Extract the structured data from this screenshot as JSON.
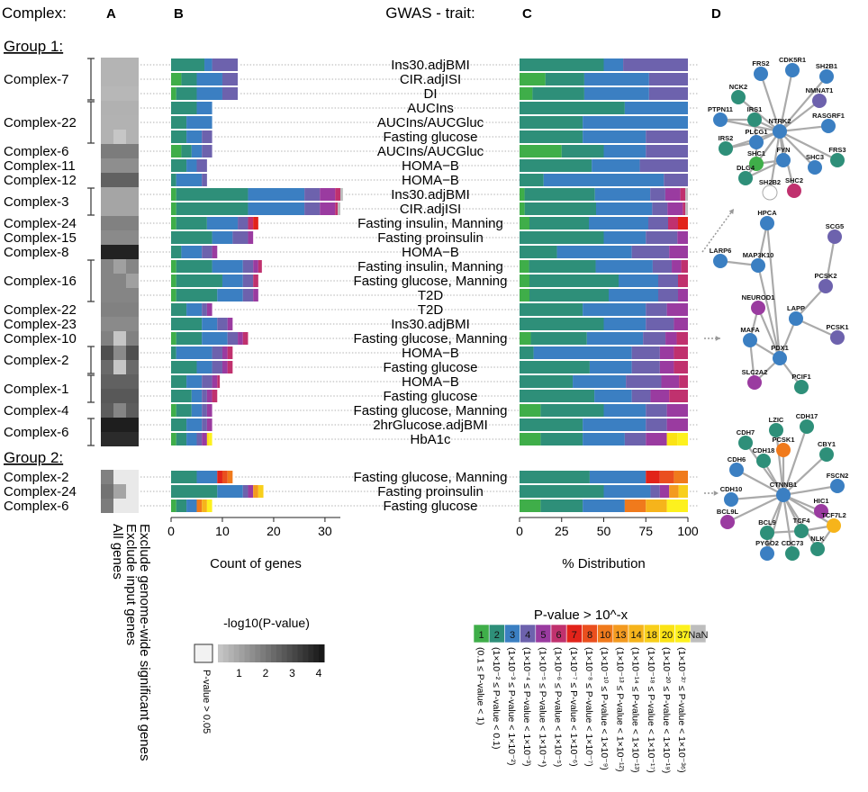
{
  "header": {
    "complex_label": "Complex:",
    "panel_a": "A",
    "panel_b": "B",
    "panel_c": "C",
    "panel_d": "D",
    "gwas_label": "GWAS - trait:"
  },
  "groups": [
    {
      "title": "Group 1:",
      "type": "header"
    },
    {
      "title": "Group 2:",
      "type": "header"
    }
  ],
  "palette": {
    "1": "#3fae49",
    "2": "#2e8f79",
    "3": "#3b7fc2",
    "4": "#6d62ad",
    "5": "#9a3ba0",
    "6": "#c0316e",
    "7": "#e2231a",
    "8": "#ea4f1e",
    "10": "#f07a1c",
    "13": "#f39a1f",
    "14": "#f6b41b",
    "18": "#f8cf1b",
    "20": "#fbe315",
    "37": "#fdf11e",
    "NaN": "#bdbdbd"
  },
  "chart_data": {
    "type": "bar",
    "panel_b": {
      "xlabel": "Count of genes",
      "xlim": [
        0,
        33
      ],
      "ticks": [
        0,
        10,
        20,
        30
      ]
    },
    "panel_c": {
      "xlabel": "% Distribution",
      "xlim": [
        0,
        100
      ],
      "ticks": [
        0,
        25,
        50,
        75,
        100
      ]
    },
    "rows": [
      {
        "group": 1,
        "complex": "Complex-7",
        "trait": "Ins30.adjBMI",
        "heat": [
          0.55,
          0.55,
          0.55
        ],
        "segs": [
          [
            2,
            6.5
          ],
          [
            3,
            1.5
          ],
          [
            4,
            5
          ]
        ]
      },
      {
        "group": 1,
        "complex": "",
        "trait": "CIR.adjISI",
        "heat": [
          0.55,
          0.55,
          0.55
        ],
        "segs": [
          [
            1,
            2
          ],
          [
            2,
            3
          ],
          [
            3,
            5
          ],
          [
            4,
            3
          ]
        ]
      },
      {
        "group": 1,
        "complex": "",
        "trait": "DI",
        "heat": [
          0.5,
          0.5,
          0.5
        ],
        "segs": [
          [
            1,
            1
          ],
          [
            2,
            4
          ],
          [
            3,
            5
          ],
          [
            4,
            3
          ]
        ]
      },
      {
        "group": 1,
        "complex": "Complex-22",
        "trait": "AUCIns",
        "heat": [
          0.62,
          0.62,
          0.62
        ],
        "segs": [
          [
            2,
            5
          ],
          [
            3,
            3
          ]
        ]
      },
      {
        "group": 1,
        "complex": "",
        "trait": "AUCIns/AUCGluc",
        "heat": [
          0.6,
          0.6,
          0.6
        ],
        "segs": [
          [
            2,
            3
          ],
          [
            3,
            5
          ]
        ]
      },
      {
        "group": 1,
        "complex": "",
        "trait": "Fasting glucose",
        "heat": [
          0.6,
          0.15,
          0.6
        ],
        "segs": [
          [
            2,
            3
          ],
          [
            3,
            3
          ],
          [
            4,
            2
          ]
        ]
      },
      {
        "group": 1,
        "complex": "Complex-6",
        "trait": "AUCIns/AUCGluc",
        "heat": [
          1.8,
          1.8,
          1.8
        ],
        "segs": [
          [
            1,
            2
          ],
          [
            2,
            2
          ],
          [
            3,
            2
          ],
          [
            4,
            2
          ]
        ]
      },
      {
        "group": 1,
        "complex": "Complex-11",
        "trait": "HOMA−B",
        "heat": [
          1.4,
          1.4,
          1.4
        ],
        "segs": [
          [
            2,
            3
          ],
          [
            3,
            2
          ],
          [
            4,
            2
          ]
        ]
      },
      {
        "group": 1,
        "complex": "Complex-12",
        "trait": "HOMA−B",
        "heat": [
          2.4,
          2.4,
          2.4
        ],
        "segs": [
          [
            2,
            1
          ],
          [
            3,
            5
          ],
          [
            4,
            1
          ]
        ]
      },
      {
        "group": 1,
        "complex": "Complex-3",
        "trait": "Ins30.adjBMI",
        "heat": [
          0.9,
          0.9,
          0.9
        ],
        "segs": [
          [
            1,
            1
          ],
          [
            2,
            14
          ],
          [
            3,
            11
          ],
          [
            4,
            3
          ],
          [
            5,
            3
          ],
          [
            6,
            1
          ],
          [
            "NaN",
            0.5
          ]
        ]
      },
      {
        "group": 1,
        "complex": "",
        "trait": "CIR.adjISI",
        "heat": [
          0.9,
          0.9,
          0.9
        ],
        "segs": [
          [
            1,
            1
          ],
          [
            2,
            14
          ],
          [
            3,
            11
          ],
          [
            4,
            3
          ],
          [
            5,
            3
          ],
          [
            6,
            0.5
          ],
          [
            "NaN",
            0.5
          ]
        ]
      },
      {
        "group": 1,
        "complex": "Complex-24",
        "trait": "Fasting insulin, Manning",
        "heat": [
          1.7,
          1.7,
          1.7
        ],
        "segs": [
          [
            1,
            1
          ],
          [
            2,
            6
          ],
          [
            3,
            6
          ],
          [
            4,
            2
          ],
          [
            6,
            1
          ],
          [
            7,
            1
          ]
        ]
      },
      {
        "group": 1,
        "complex": "Complex-15",
        "trait": "Fasting proinsulin",
        "heat": [
          1.5,
          1.5,
          1.5
        ],
        "segs": [
          [
            2,
            8
          ],
          [
            3,
            4
          ],
          [
            4,
            3
          ],
          [
            5,
            1
          ]
        ]
      },
      {
        "group": 1,
        "complex": "Complex-8",
        "trait": "HOMA−B",
        "heat": [
          3.8,
          3.8,
          3.8
        ],
        "segs": [
          [
            2,
            2
          ],
          [
            3,
            4
          ],
          [
            4,
            2
          ],
          [
            5,
            1
          ]
        ]
      },
      {
        "group": 1,
        "complex": "Complex-16",
        "trait": "Fasting insulin, Manning",
        "heat": [
          1.6,
          1.0,
          1.6
        ],
        "segs": [
          [
            1,
            1
          ],
          [
            2,
            7
          ],
          [
            3,
            6
          ],
          [
            4,
            2
          ],
          [
            5,
            1
          ],
          [
            6,
            0.7
          ]
        ]
      },
      {
        "group": 1,
        "complex": "",
        "trait": "Fasting glucose, Manning",
        "heat": [
          1.6,
          1.6,
          1.0
        ],
        "segs": [
          [
            1,
            1
          ],
          [
            2,
            9
          ],
          [
            3,
            4
          ],
          [
            4,
            2
          ],
          [
            6,
            1
          ]
        ]
      },
      {
        "group": 1,
        "complex": "",
        "trait": "T2D",
        "heat": [
          1.6,
          1.6,
          1.6
        ],
        "segs": [
          [
            1,
            1
          ],
          [
            2,
            8
          ],
          [
            3,
            5
          ],
          [
            4,
            2
          ],
          [
            5,
            1
          ]
        ]
      },
      {
        "group": 1,
        "complex": "Complex-22",
        "trait": "T2D",
        "heat": [
          1.7,
          1.7,
          1.7
        ],
        "segs": [
          [
            2,
            3
          ],
          [
            3,
            3
          ],
          [
            4,
            1
          ],
          [
            5,
            1
          ]
        ]
      },
      {
        "group": 1,
        "complex": "Complex-23",
        "trait": "Ins30.adjBMI",
        "heat": [
          1.5,
          1.5,
          1.5
        ],
        "segs": [
          [
            2,
            6
          ],
          [
            3,
            3
          ],
          [
            4,
            2
          ],
          [
            5,
            1
          ]
        ]
      },
      {
        "group": 1,
        "complex": "Complex-10",
        "trait": "Fasting glucose, Manning",
        "heat": [
          1.7,
          0.15,
          1.7
        ],
        "segs": [
          [
            1,
            1
          ],
          [
            2,
            5
          ],
          [
            3,
            5
          ],
          [
            4,
            2
          ],
          [
            5,
            1
          ],
          [
            6,
            1
          ]
        ]
      },
      {
        "group": 1,
        "complex": "Complex-2",
        "trait": "HOMA−B",
        "heat": [
          2.8,
          1.5,
          2.8
        ],
        "segs": [
          [
            2,
            1
          ],
          [
            3,
            7
          ],
          [
            4,
            2
          ],
          [
            5,
            1
          ],
          [
            6,
            1
          ]
        ]
      },
      {
        "group": 1,
        "complex": "",
        "trait": "Fasting glucose",
        "heat": [
          2.2,
          0.15,
          2.2
        ],
        "segs": [
          [
            2,
            5
          ],
          [
            3,
            3
          ],
          [
            4,
            2
          ],
          [
            5,
            1
          ],
          [
            6,
            1
          ]
        ]
      },
      {
        "group": 1,
        "complex": "Complex-1",
        "trait": "HOMA−B",
        "heat": [
          2.4,
          2.4,
          2.4
        ],
        "segs": [
          [
            2,
            3
          ],
          [
            3,
            3
          ],
          [
            4,
            2
          ],
          [
            5,
            1
          ],
          [
            6,
            0.5
          ]
        ]
      },
      {
        "group": 1,
        "complex": "",
        "trait": "Fasting glucose",
        "heat": [
          2.6,
          2.6,
          2.6
        ],
        "segs": [
          [
            2,
            4
          ],
          [
            3,
            2
          ],
          [
            4,
            1
          ],
          [
            5,
            1
          ],
          [
            6,
            1
          ]
        ]
      },
      {
        "group": 1,
        "complex": "Complex-4",
        "trait": "Fasting glucose, Manning",
        "heat": [
          2.5,
          1.6,
          2.5
        ],
        "segs": [
          [
            1,
            1
          ],
          [
            2,
            3
          ],
          [
            3,
            2
          ],
          [
            4,
            1
          ],
          [
            5,
            1
          ]
        ]
      },
      {
        "group": 1,
        "complex": "Complex-6",
        "trait": "2hrGlucose.adjBMI",
        "heat": [
          3.9,
          3.9,
          3.9
        ],
        "segs": [
          [
            2,
            3
          ],
          [
            3,
            3
          ],
          [
            4,
            1
          ],
          [
            5,
            1
          ]
        ]
      },
      {
        "group": 1,
        "complex": "",
        "trait": "HbA1c",
        "heat": [
          3.6,
          3.6,
          3.6
        ],
        "segs": [
          [
            1,
            1
          ],
          [
            2,
            2
          ],
          [
            3,
            2
          ],
          [
            4,
            1
          ],
          [
            5,
            1
          ],
          [
            20,
            0.5
          ],
          [
            37,
            0.5
          ]
        ]
      },
      {
        "group": 2,
        "complex": "Complex-2",
        "trait": "Fasting glucose, Manning",
        "heat": [
          1.7,
          0.0,
          0.0
        ],
        "segs": [
          [
            2,
            5
          ],
          [
            3,
            4
          ],
          [
            7,
            1
          ],
          [
            8,
            1
          ],
          [
            10,
            1
          ]
        ]
      },
      {
        "group": 2,
        "complex": "Complex-24",
        "trait": "Fasting proinsulin",
        "heat": [
          2.0,
          0.9,
          0.0
        ],
        "segs": [
          [
            2,
            9
          ],
          [
            3,
            5
          ],
          [
            4,
            1
          ],
          [
            5,
            1
          ],
          [
            13,
            1
          ],
          [
            18,
            1
          ]
        ]
      },
      {
        "group": 2,
        "complex": "Complex-6",
        "trait": "Fasting glucose",
        "heat": [
          1.8,
          0.0,
          0.0
        ],
        "segs": [
          [
            1,
            1
          ],
          [
            2,
            2
          ],
          [
            3,
            2
          ],
          [
            10,
            1
          ],
          [
            14,
            1
          ],
          [
            37,
            1
          ]
        ]
      }
    ]
  },
  "heat_columns": [
    "All genes",
    "Exclude input genes",
    "Exclude genome-wide significant genes"
  ],
  "heat_legend": {
    "title": "-log10(P-value)",
    "nonsig": "P-value > 0.05",
    "ticks": [
      "1",
      "2",
      "3",
      "4"
    ]
  },
  "pval_legend": {
    "title": "P-value > 10^-x",
    "keys": [
      "1",
      "2",
      "3",
      "4",
      "5",
      "6",
      "7",
      "8",
      "10",
      "13",
      "14",
      "18",
      "20",
      "37",
      "NaN"
    ],
    "labels": [
      "(0.1 ≤ P-value < 1)",
      "(1×10⁻² ≤ P-value < 0.1)",
      "(1×10⁻³ ≤ P-value < 1×10⁻²)",
      "(1×10⁻⁴ ≤ P-value < 1×10⁻³)",
      "(1×10⁻⁵ ≤ P-value < 1×10⁻⁴)",
      "(1×10⁻⁶ ≤ P-value < 1×10⁻⁵)",
      "(1×10⁻⁷ ≤ P-value < 1×10⁻⁶)",
      "(1×10⁻⁸ ≤ P-value < 1×10⁻⁷)",
      "(1×10⁻¹⁰ ≤ P-value < 1×10⁻⁹)",
      "(1×10⁻¹³ ≤ P-value < 1×10⁻¹²)",
      "(1×10⁻¹⁴ ≤ P-value < 1×10⁻¹³)",
      "(1×10⁻¹⁸ ≤ P-value < 1×10⁻¹⁷)",
      "(1×10⁻²⁰ ≤ P-value < 1×10⁻¹⁹)",
      "(1×10⁻³⁷ ≤ P-value < 1×10⁻³⁶)",
      ""
    ]
  },
  "networks": [
    {
      "nodes": [
        {
          "id": "FRS2",
          "c": 3
        },
        {
          "id": "CDK5R1",
          "c": 3
        },
        {
          "id": "SH2B1",
          "c": 3
        },
        {
          "id": "NCK2",
          "c": 2
        },
        {
          "id": "NMNAT1",
          "c": 4
        },
        {
          "id": "PTPN11",
          "c": 3
        },
        {
          "id": "IRS1",
          "c": 2
        },
        {
          "id": "NTRK2",
          "c": 3
        },
        {
          "id": "RASGRF1",
          "c": 3
        },
        {
          "id": "IRS2",
          "c": 2
        },
        {
          "id": "PLCG1",
          "c": 3
        },
        {
          "id": "FRS3",
          "c": 2
        },
        {
          "id": "SHC1",
          "c": 1
        },
        {
          "id": "FYN",
          "c": 3
        },
        {
          "id": "SHC3",
          "c": 3
        },
        {
          "id": "DLG4",
          "c": 2
        },
        {
          "id": "SH2B2",
          "c": "empty"
        },
        {
          "id": "SHC2",
          "c": 6
        }
      ],
      "hub": "NTRK2"
    },
    {
      "nodes": [
        {
          "id": "HPCA",
          "c": 3
        },
        {
          "id": "SCG5",
          "c": 4
        },
        {
          "id": "LARP6",
          "c": 3
        },
        {
          "id": "MAP3K10",
          "c": 3
        },
        {
          "id": "PCSK2",
          "c": 4
        },
        {
          "id": "NEUROD1",
          "c": 5
        },
        {
          "id": "LAPP",
          "c": 3
        },
        {
          "id": "PCSK1",
          "c": 4
        },
        {
          "id": "MAFA",
          "c": 3
        },
        {
          "id": "PDX1",
          "c": 3
        },
        {
          "id": "SLC2A2",
          "c": 5
        },
        {
          "id": "PCIF1",
          "c": 2
        }
      ],
      "hub": "PDX1"
    },
    {
      "nodes": [
        {
          "id": "LZIC",
          "c": 2
        },
        {
          "id": "CDH17",
          "c": 2
        },
        {
          "id": "CDH7",
          "c": 2
        },
        {
          "id": "PCSK1",
          "c": 10
        },
        {
          "id": "CBY1",
          "c": 2
        },
        {
          "id": "CDH18",
          "c": 2
        },
        {
          "id": "CDH6",
          "c": 3
        },
        {
          "id": "FSCN2",
          "c": 3
        },
        {
          "id": "CTNNB1",
          "c": 3
        },
        {
          "id": "CDH10",
          "c": 3
        },
        {
          "id": "HIC1",
          "c": 5
        },
        {
          "id": "TCF7L2",
          "c": 14
        },
        {
          "id": "TCF4",
          "c": 2
        },
        {
          "id": "BCL9L",
          "c": 5
        },
        {
          "id": "BCL9",
          "c": 2
        },
        {
          "id": "NLK",
          "c": 2
        },
        {
          "id": "PYGO2",
          "c": 3
        },
        {
          "id": "CDC73",
          "c": 2
        }
      ],
      "hub": "CTNNB1"
    }
  ]
}
